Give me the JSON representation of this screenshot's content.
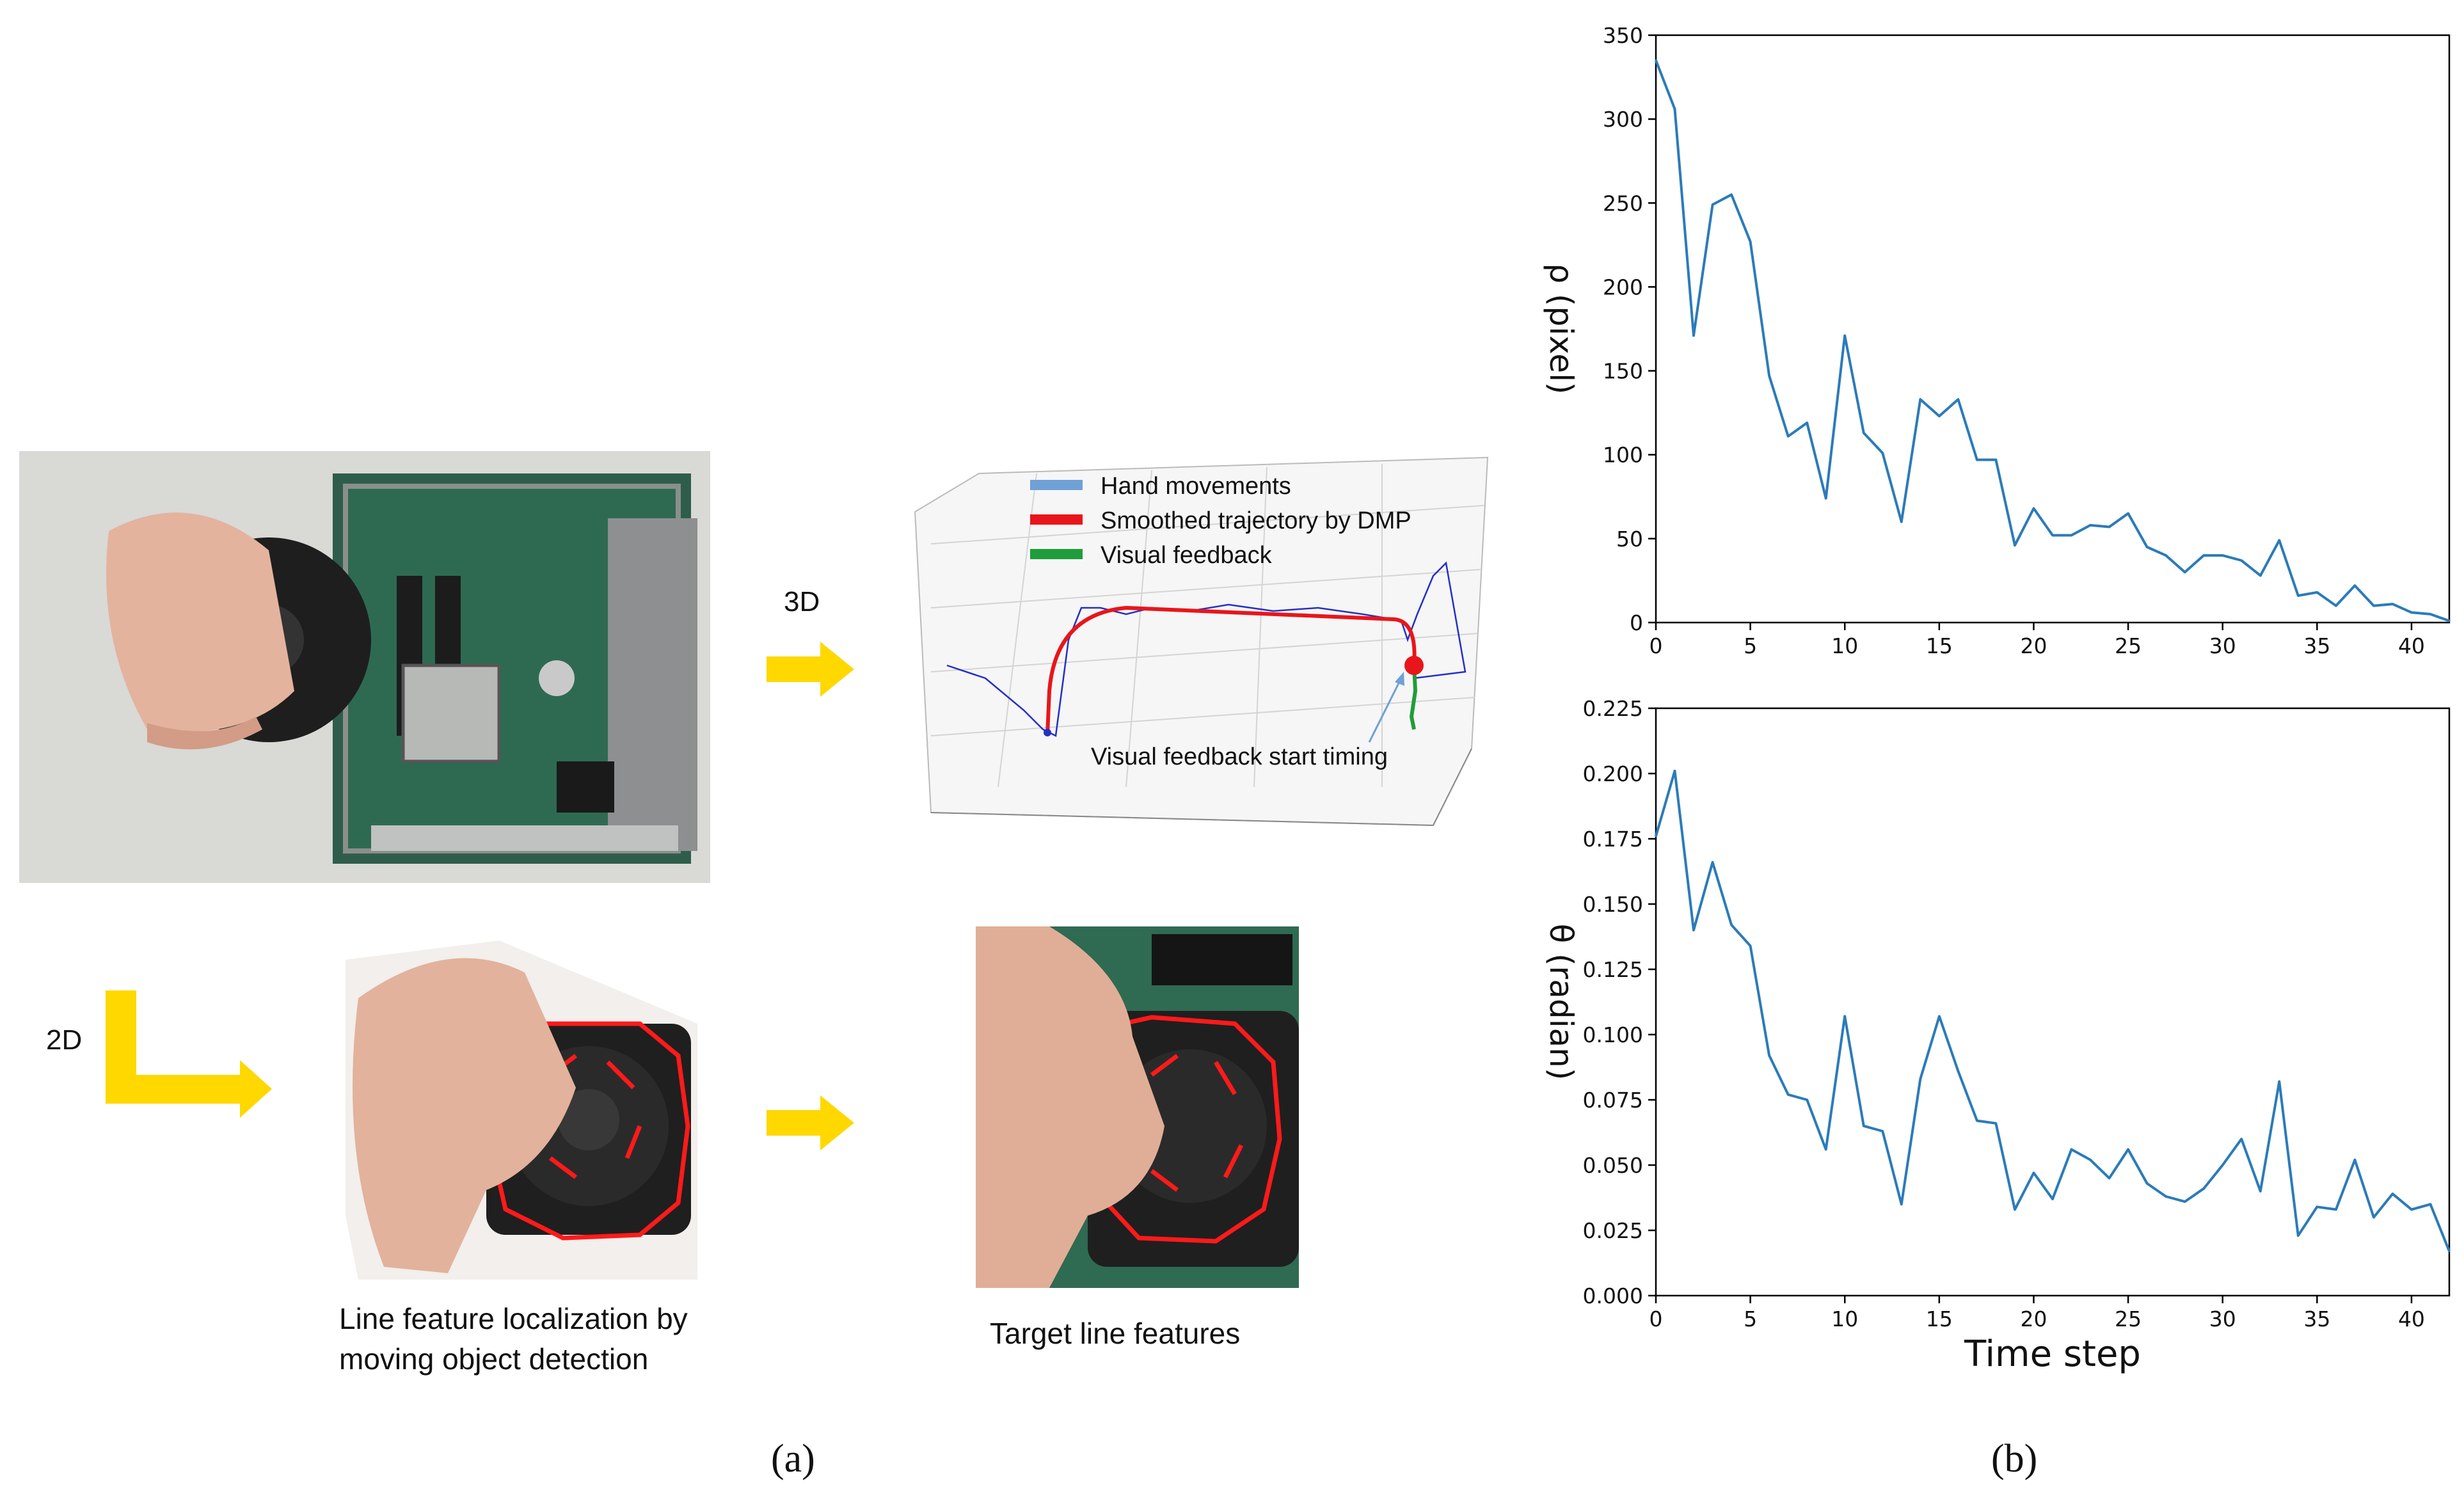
{
  "panel_a": {
    "label": "(a)",
    "label_3d": "3D",
    "label_2d": "2D",
    "caption_localization": [
      "Line feature localization by",
      "moving object detection"
    ],
    "caption_target": "Target line features",
    "legend": [
      {
        "name": "Hand movements",
        "color": "#6fa0d8"
      },
      {
        "name": "Smoothed trajectory by DMP",
        "color": "#e8161b"
      },
      {
        "name": "Visual feedback",
        "color": "#1f9d3a"
      }
    ],
    "annotation": "Visual feedback start timing",
    "arrow_color": "#ffd800"
  },
  "panel_b": {
    "label": "(b)"
  },
  "chart_data": [
    {
      "type": "line",
      "color": "#2b7bb9",
      "ylabel": "ρ (pixel)",
      "xlabel": "",
      "xlim": [
        0,
        42
      ],
      "ylim": [
        0,
        350
      ],
      "xticks": [
        0,
        5,
        10,
        15,
        20,
        25,
        30,
        35,
        40
      ],
      "yticks": [
        0,
        50,
        100,
        150,
        200,
        250,
        300,
        350
      ],
      "ytick_labels": [
        "0",
        "50",
        "100",
        "150",
        "200",
        "250",
        "300",
        "350"
      ],
      "x": [
        0,
        1,
        2,
        3,
        4,
        5,
        6,
        7,
        8,
        9,
        10,
        11,
        12,
        13,
        14,
        15,
        16,
        17,
        18,
        19,
        20,
        21,
        22,
        23,
        24,
        25,
        26,
        27,
        28,
        29,
        30,
        31,
        32,
        33,
        34,
        35,
        36,
        37,
        38,
        39,
        40,
        41,
        42
      ],
      "values": [
        335,
        306,
        171,
        249,
        255,
        227,
        147,
        111,
        119,
        74,
        171,
        113,
        101,
        60,
        133,
        123,
        133,
        97,
        97,
        46,
        68,
        52,
        52,
        58,
        57,
        65,
        45,
        40,
        30,
        40,
        40,
        37,
        28,
        49,
        16,
        18,
        10,
        22,
        10,
        11,
        6,
        5,
        1
      ]
    },
    {
      "type": "line",
      "color": "#2b7bb9",
      "ylabel": "θ (radian)",
      "xlabel": "Time step",
      "xlim": [
        0,
        42
      ],
      "ylim": [
        0,
        0.225
      ],
      "xticks": [
        0,
        5,
        10,
        15,
        20,
        25,
        30,
        35,
        40
      ],
      "yticks": [
        0,
        0.025,
        0.05,
        0.075,
        0.1,
        0.125,
        0.15,
        0.175,
        0.2,
        0.225
      ],
      "ytick_labels": [
        "0.000",
        "0.025",
        "0.050",
        "0.075",
        "0.100",
        "0.125",
        "0.150",
        "0.175",
        "0.200",
        "0.225"
      ],
      "x": [
        0,
        1,
        2,
        3,
        4,
        5,
        6,
        7,
        8,
        9,
        10,
        11,
        12,
        13,
        14,
        15,
        16,
        17,
        18,
        19,
        20,
        21,
        22,
        23,
        24,
        25,
        26,
        27,
        28,
        29,
        30,
        31,
        32,
        33,
        34,
        35,
        36,
        37,
        38,
        39,
        40,
        41,
        42
      ],
      "values": [
        0.176,
        0.201,
        0.14,
        0.166,
        0.142,
        0.134,
        0.092,
        0.077,
        0.075,
        0.056,
        0.107,
        0.065,
        0.063,
        0.035,
        0.083,
        0.107,
        0.086,
        0.067,
        0.066,
        0.033,
        0.047,
        0.037,
        0.056,
        0.052,
        0.045,
        0.056,
        0.043,
        0.038,
        0.036,
        0.041,
        0.05,
        0.06,
        0.04,
        0.082,
        0.023,
        0.034,
        0.033,
        0.052,
        0.03,
        0.039,
        0.033,
        0.035,
        0.017
      ]
    }
  ]
}
